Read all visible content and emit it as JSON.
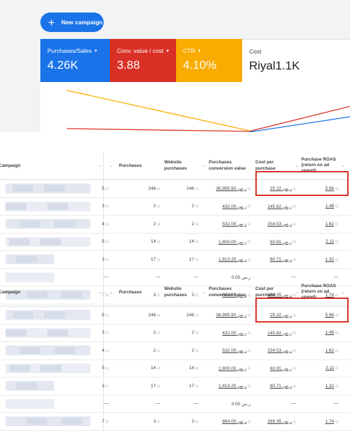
{
  "toolbar": {
    "new_campaign": "New campaign"
  },
  "metric_cards": [
    {
      "label": "Purchases/Sales",
      "value": "4.26K",
      "color": "#1a73e8"
    },
    {
      "label": "Conv. value / cost",
      "value": "3.88",
      "color": "#d93025"
    },
    {
      "label": "CTR",
      "value": "4.10%",
      "color": "#f9ab00"
    },
    {
      "label": "Cost",
      "value": "Riyal1.1K",
      "color": "#ffffff"
    }
  ],
  "table": {
    "headers": {
      "campaign": "Campaign",
      "purchases": "Purchases",
      "website_purchases": "Website purchases",
      "conversion_value": "Purchases conversion value",
      "cost_per_purchase": "Cost per purchase",
      "roas": "Purchase ROAS (return on ad spend)"
    },
    "rows": [
      {
        "prev": "5",
        "purchases": "246",
        "website": "246",
        "value": "36,995.90 ر.س",
        "cpp": "25.22 ر.س",
        "roas": "5.96"
      },
      {
        "prev": "3",
        "purchases": "2",
        "website": "2",
        "value": "432.00 ر.س",
        "cpp": "145.82 ر.س",
        "roas": "1.48"
      },
      {
        "prev": "4",
        "purchases": "2",
        "website": "2",
        "value": "532.00 ر.س",
        "cpp": "154.53 ر.س",
        "roas": "1.62"
      },
      {
        "prev": "5",
        "purchases": "14",
        "website": "14",
        "value": "1,800.00 ر.س",
        "cpp": "60.91 ر.س",
        "roas": "2.11"
      },
      {
        "prev": "3",
        "purchases": "17",
        "website": "17",
        "value": "1,813.20 ر.س",
        "cpp": "80.71 ر.س",
        "roas": "1.32"
      },
      {
        "prev": "—",
        "purchases": "—",
        "website": "—",
        "value": "0.00 ر.س",
        "cpp": "—",
        "roas": "—"
      },
      {
        "prev": "7",
        "purchases": "3",
        "website": "3",
        "value": "884.00 ر.س",
        "cpp": "169.35 ر.س",
        "roas": "1.74"
      }
    ]
  },
  "colors": {
    "highlight": "#d93025",
    "accent": "#1a73e8"
  }
}
